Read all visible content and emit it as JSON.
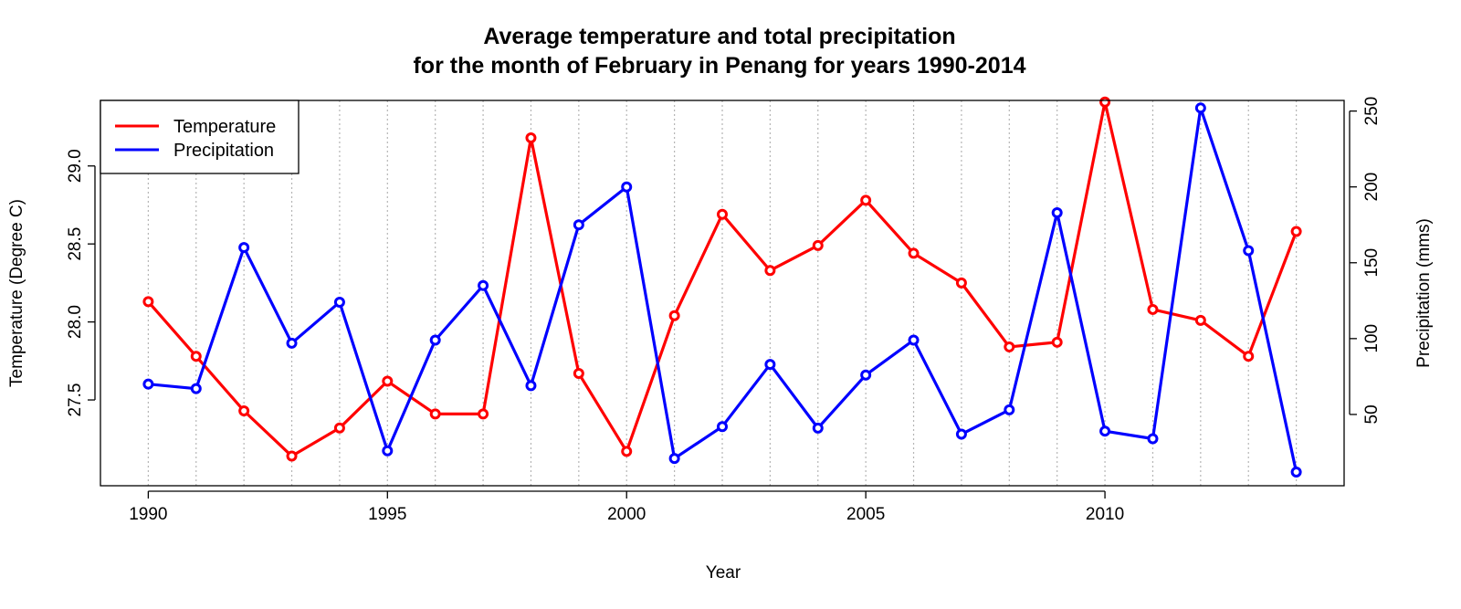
{
  "chart_data": {
    "type": "line",
    "title_line1": "Average temperature and total precipitation",
    "title_line2": "for the month of February in Penang for years 1990-2014",
    "xlabel": "Year",
    "ylabel_left": "Temperature (Degree C)",
    "ylabel_right": "Precipitation (mms)",
    "x": [
      1990,
      1991,
      1992,
      1993,
      1994,
      1995,
      1996,
      1997,
      1998,
      1999,
      2000,
      2001,
      2002,
      2003,
      2004,
      2005,
      2006,
      2007,
      2008,
      2009,
      2010,
      2011,
      2012,
      2013,
      2014
    ],
    "x_ticks": [
      "1990",
      "1995",
      "2000",
      "2005",
      "2010"
    ],
    "y_left_ticks": [
      "27.5",
      "28.0",
      "28.5",
      "29.0"
    ],
    "y_right_ticks": [
      "50",
      "100",
      "150",
      "200",
      "250"
    ],
    "xlim": [
      1989,
      2015
    ],
    "ylim_left": [
      26.95,
      29.42
    ],
    "ylim_right": [
      3,
      257
    ],
    "grid": "vertical dotted at each year",
    "legend_position": "top-left",
    "series": [
      {
        "name": "Temperature",
        "axis": "left",
        "color": "#ff0000",
        "values": [
          28.13,
          27.78,
          27.43,
          27.14,
          27.32,
          27.62,
          27.41,
          27.41,
          29.18,
          27.67,
          27.17,
          28.04,
          28.69,
          28.33,
          28.49,
          28.78,
          28.44,
          28.25,
          27.84,
          27.87,
          29.41,
          28.08,
          28.01,
          27.78,
          28.58
        ]
      },
      {
        "name": "Precipitation",
        "axis": "right",
        "color": "#0000ff",
        "values": [
          70,
          67,
          160,
          97,
          124,
          26,
          99,
          135,
          69,
          175,
          200,
          21,
          42,
          83,
          41,
          76,
          99,
          37,
          53,
          183,
          39,
          34,
          252,
          158,
          12
        ]
      }
    ]
  }
}
